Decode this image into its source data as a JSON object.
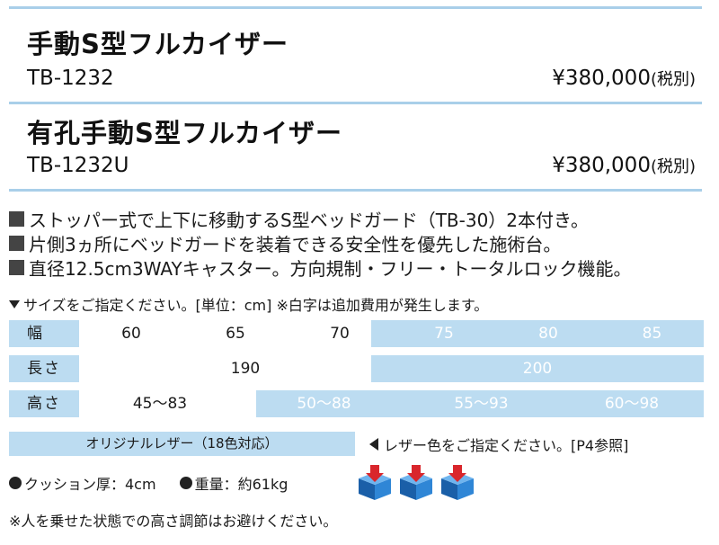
{
  "products": [
    {
      "name": "手動S型フルカイザー",
      "model": "TB-1232",
      "price": "¥380,000",
      "tax_note": "(税別)"
    },
    {
      "name": "有孔手動S型フルカイザー",
      "model": "TB-1232U",
      "price": "¥380,000",
      "tax_note": "(税別)"
    }
  ],
  "features": [
    "ストッパー式で上下に移動するS型ベッドガード（TB-30）2本付き。",
    "片側3ヵ所にベッドガードを装着できる安全性を優先した施術台。",
    "直径12.5cm3WAYキャスター。方向規制・フリー・トータルロック機能。"
  ],
  "size_note": "サイズをご指定ください。[単位：cm] ※白字は追加費用が発生します。",
  "spec_table": {
    "width": {
      "label": "幅",
      "values": [
        "60",
        "65",
        "70",
        "75",
        "80",
        "85"
      ]
    },
    "length": {
      "label": "長さ",
      "values": [
        "190",
        "200"
      ]
    },
    "height": {
      "label": "高さ",
      "values": [
        "45〜83",
        "50〜88",
        "55〜93",
        "60〜98"
      ]
    }
  },
  "leather": {
    "label": "オリジナルレザー（18色対応）",
    "note": "レザー色をご指定ください。[P4参照]"
  },
  "cushion": "クッション厚：4cm",
  "weight": "重量：約61kg",
  "caution": "※人を乗せた状態での高さ調節はお避けください。",
  "colors": {
    "rule": "#a9cfe9",
    "table_bg": "#bcdcf1",
    "icon_box": "#1f6fc0",
    "icon_arrow": "#d9262c"
  }
}
